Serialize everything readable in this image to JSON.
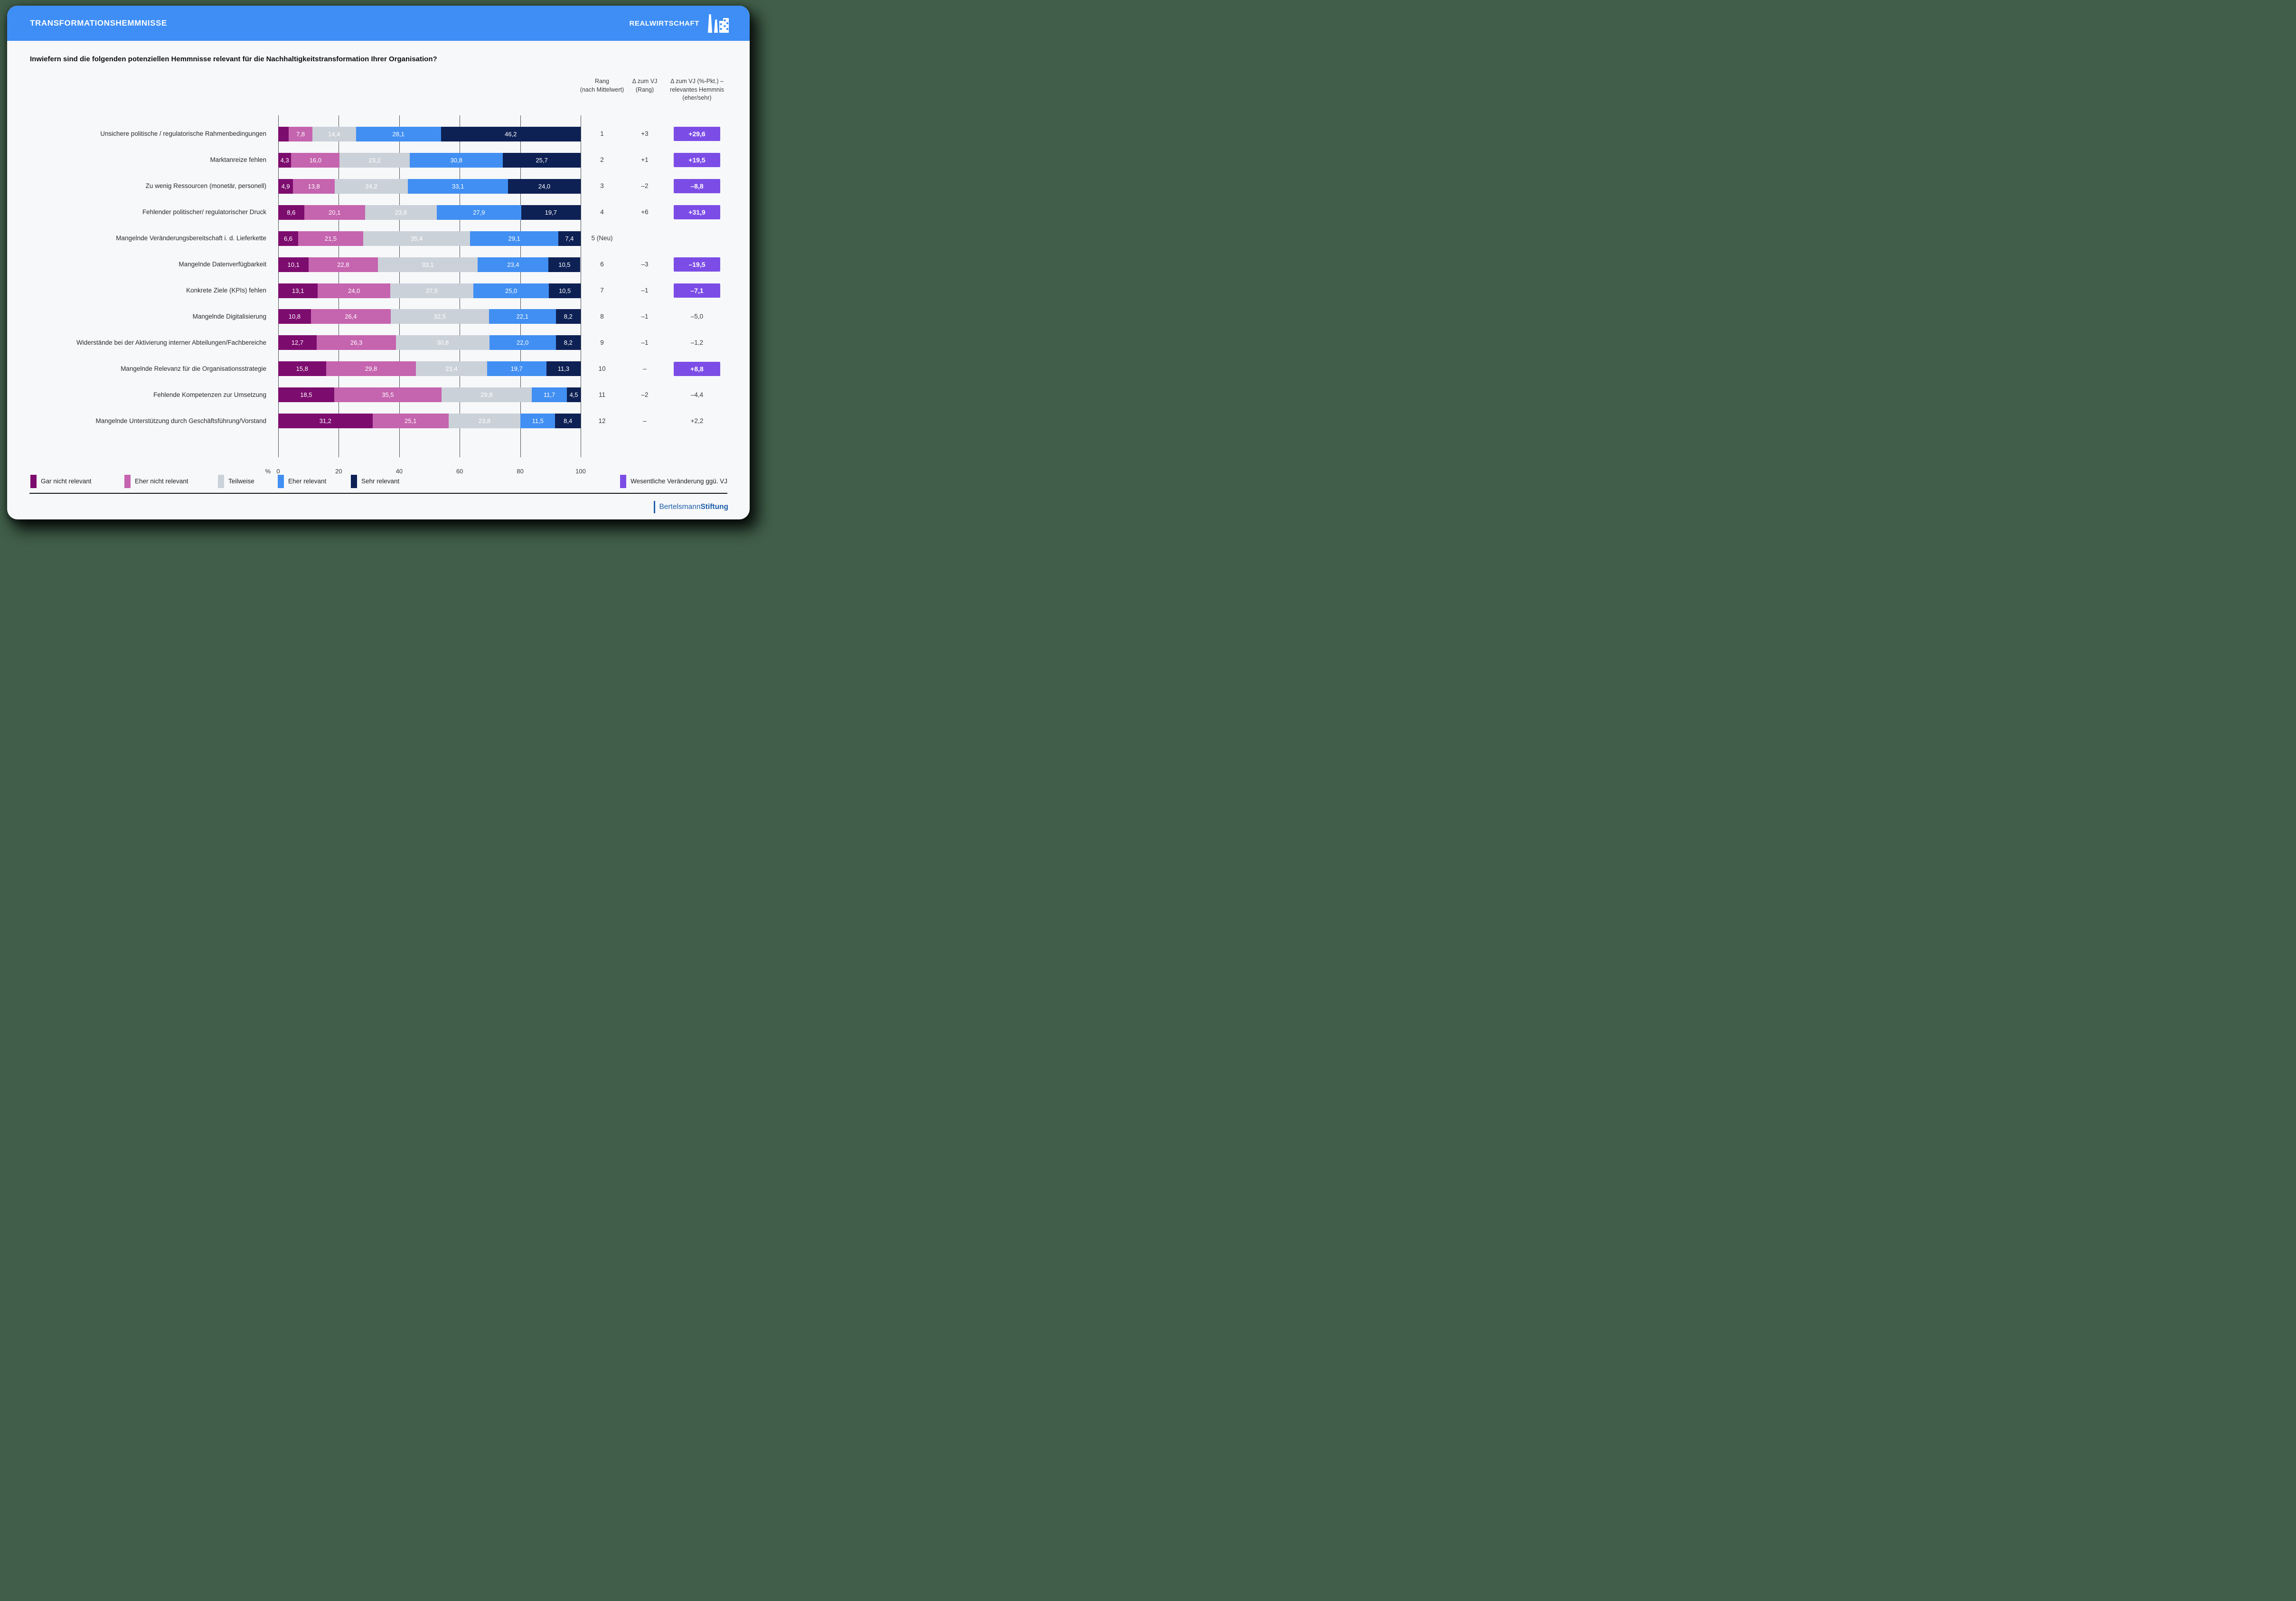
{
  "header": {
    "title": "TRANSFORMATIONSHEMMNISSE",
    "brand": "REALWIRTSCHAFT"
  },
  "question": "Inwiefern sind die folgenden potenziellen Hemmnisse relevant für die Nachhaltigkeitstransformation Ihrer Organisation?",
  "table_headers": {
    "rank": "Rang\n(nach Mittelwert)",
    "delta_rank": "Δ zum VJ\n(Rang)",
    "delta_pct": "Δ zum VJ (%-Pkt.) –\nrelevantes Hemmnis\n(eher/sehr)"
  },
  "colors": {
    "page_background": "#405E49",
    "card_background": "#F7F8FA",
    "header_blue": "#3E8EF5",
    "badge_purple": "#7C4DE6",
    "logo_blue": "#1E5EA9",
    "gridline": "#4A4E55"
  },
  "chart_data": {
    "type": "bar",
    "orientation": "horizontal-stacked",
    "unit": "%",
    "xlim": [
      0,
      100
    ],
    "ticks": [
      "0",
      "20",
      "40",
      "60",
      "80",
      "100"
    ],
    "grid": true,
    "categories": [
      "Unsichere politische / regulatorische Rahmenbedingungen",
      "Marktanreize fehlen",
      "Zu wenig Ressourcen (monetär, personell)",
      "Fehlender politischer/ regulatorischer Druck",
      "Mangelnde Veränderungsbereitschaft i. d. Lieferkette",
      "Mangelnde Datenverfügbarkeit",
      "Konkrete Ziele (KPIs) fehlen",
      "Mangelnde Digitalisierung",
      "Widerstände bei der Aktivierung interner Abteilungen/Fachbereiche",
      "Mangelnde Relevanz für die Organisationsstrategie",
      "Fehlende Kompetenzen zur Umsetzung",
      "Mangelnde Unterstützung durch Geschäftsführung/Vorstand"
    ],
    "series": [
      {
        "name": "Gar nicht relevant",
        "color": "#7D0C6F",
        "values": [
          3.5,
          4.3,
          4.9,
          8.6,
          6.6,
          10.1,
          13.1,
          10.8,
          12.7,
          15.8,
          18.5,
          31.2
        ]
      },
      {
        "name": "Eher nicht relevant",
        "color": "#C564AF",
        "values": [
          7.8,
          16.0,
          13.8,
          20.1,
          21.5,
          22.8,
          24.0,
          26.4,
          26.3,
          29.8,
          35.5,
          25.1
        ]
      },
      {
        "name": "Teilweise",
        "color": "#CBD1D9",
        "values": [
          14.4,
          23.2,
          24.2,
          23.8,
          35.4,
          33.1,
          27.5,
          32.5,
          30.8,
          23.4,
          29.8,
          23.8
        ]
      },
      {
        "name": "Eher relevant",
        "color": "#418FF2",
        "values": [
          28.1,
          30.8,
          33.1,
          27.9,
          29.1,
          23.4,
          25.0,
          22.1,
          22.0,
          19.7,
          11.7,
          11.5
        ]
      },
      {
        "name": "Sehr relevant",
        "color": "#0E2155",
        "values": [
          46.2,
          25.7,
          24.0,
          19.7,
          7.4,
          10.5,
          10.5,
          8.2,
          8.2,
          11.3,
          4.5,
          8.4
        ]
      }
    ],
    "min_label_value": 4,
    "rank": [
      "1",
      "2",
      "3",
      "4",
      "5 (Neu)",
      "6",
      "7",
      "8",
      "9",
      "10",
      "11",
      "12"
    ],
    "delta_rank": [
      "+3",
      "+1",
      "–2",
      "+6",
      "",
      "–3",
      "–1",
      "–1",
      "–1",
      "–",
      "–2",
      "–"
    ],
    "delta_pct": [
      "+29,6",
      "+19,5",
      "–8,8",
      "+31,9",
      "",
      "–19,5",
      "–7,1",
      "–5,0",
      "–1,2",
      "+8,8",
      "–4,4",
      "+2,2"
    ],
    "delta_highlight": [
      true,
      true,
      true,
      true,
      false,
      true,
      true,
      false,
      false,
      true,
      false,
      false
    ],
    "legend_positions_left": [
      49,
      247,
      444,
      570,
      724
    ]
  },
  "legend_right": {
    "label": "Wesentliche Veränderung ggü. VJ",
    "color": "#7C4DE6"
  },
  "footer": {
    "brand_prefix": "Bertelsmann",
    "brand_suffix": "Stiftung"
  }
}
